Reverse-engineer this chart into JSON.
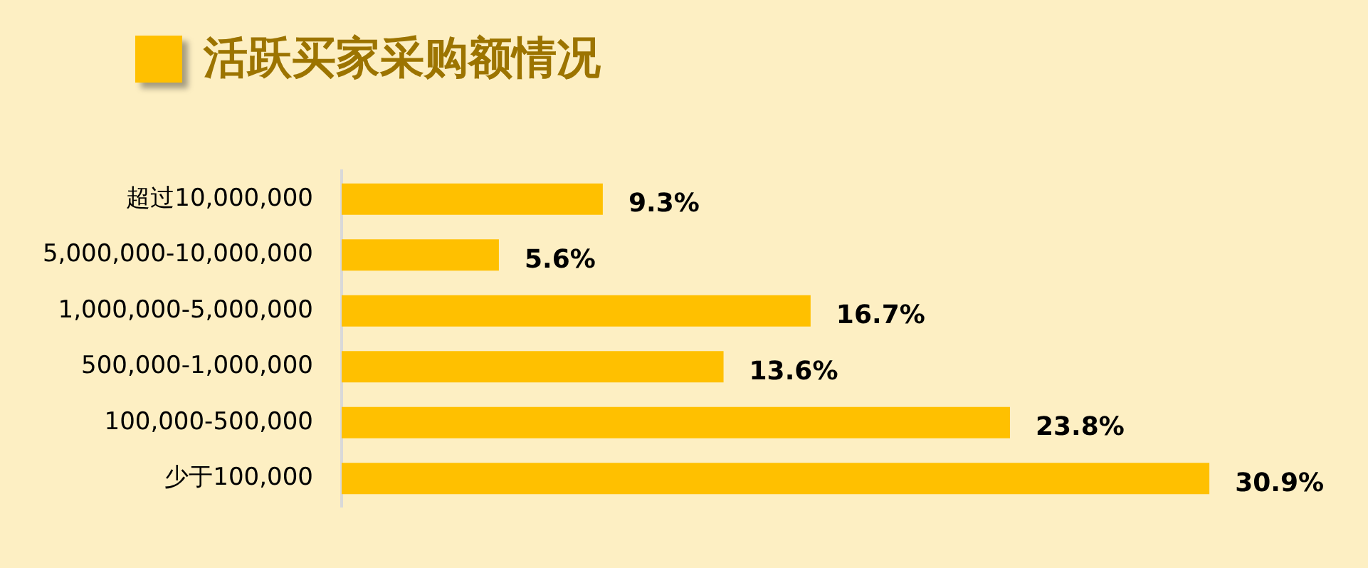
{
  "chart_data": {
    "type": "bar",
    "orientation": "horizontal",
    "title": "活跃买家采购额情况",
    "categories": [
      "超过10,000,000",
      "5,000,000-10,000,000",
      "1,000,000-5,000,000",
      "500,000-1,000,000",
      "100,000-500,000",
      "少于100,000"
    ],
    "values": [
      9.3,
      5.6,
      16.7,
      13.6,
      23.8,
      30.9
    ],
    "value_labels": [
      "9.3%",
      "5.6%",
      "16.7%",
      "13.6%",
      "23.8%",
      "30.9%"
    ],
    "color": "#ffc000"
  }
}
